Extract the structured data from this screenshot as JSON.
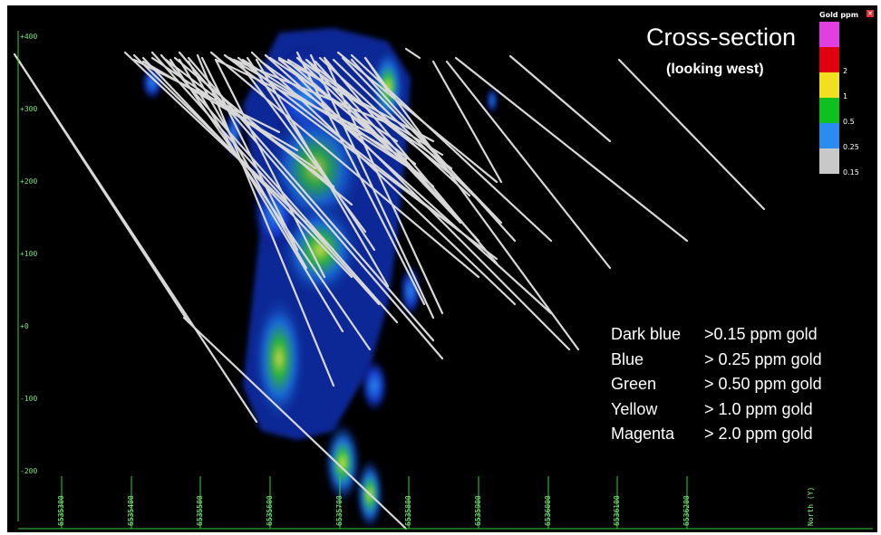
{
  "title": "Cross-section",
  "subtitle": "(looking west)",
  "scale": {
    "title": "Gold ppm",
    "entries": [
      {
        "label": "",
        "color": "#e040e0"
      },
      {
        "label": "2",
        "color": "#e00010"
      },
      {
        "label": "1",
        "color": "#f0e020"
      },
      {
        "label": "0.5",
        "color": "#10c020"
      },
      {
        "label": "0.25",
        "color": "#2a8cf0"
      },
      {
        "label": "0.15",
        "color": "#c8c8c8"
      }
    ]
  },
  "legend": [
    {
      "name": "Dark blue",
      "value": ">0.15 ppm gold"
    },
    {
      "name": "Blue",
      "value": "> 0.25 ppm gold"
    },
    {
      "name": "Green",
      "value": "> 0.50 ppm gold"
    },
    {
      "name": "Yellow",
      "value": "> 1.0 ppm gold"
    },
    {
      "name": "Magenta",
      "value": "> 2.0 ppm gold"
    }
  ],
  "y_axis_labels": [
    "+400",
    "+300",
    "+200",
    "+100",
    "+0",
    "-100",
    "-200"
  ],
  "x_axis_labels": [
    "6535300",
    "6535400",
    "6535500",
    "6535600",
    "6535700",
    "6535800",
    "6535900",
    "6536000",
    "6536100",
    "6536200",
    "North (Y)"
  ],
  "colors": {
    "background": "#000000",
    "axis": "#33cc33",
    "drillhole": "#d8d8d8"
  }
}
